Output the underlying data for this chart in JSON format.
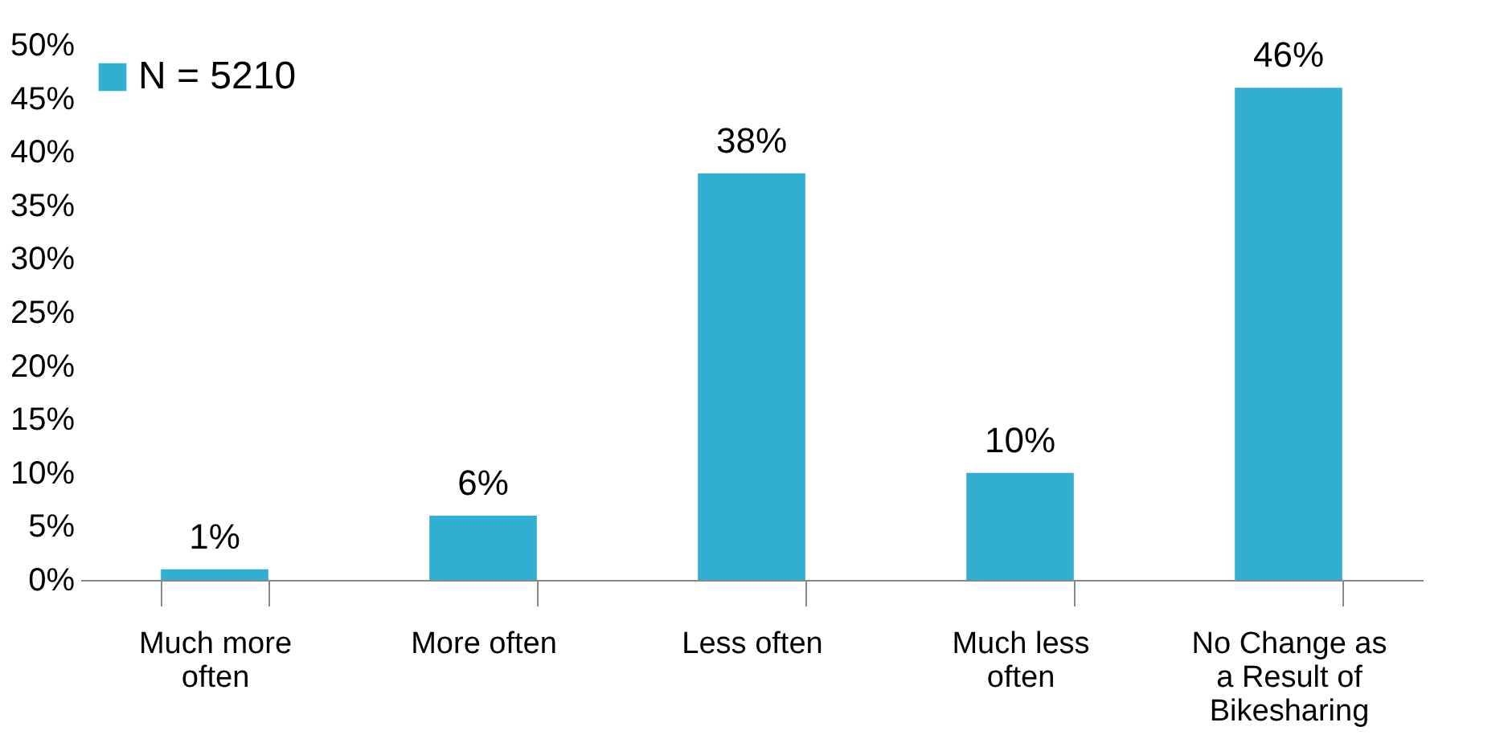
{
  "chart_data": {
    "type": "bar",
    "categories": [
      "Much more often",
      "More often",
      "Less often",
      "Much less often",
      "No Change as a Result of Bikesharing"
    ],
    "series": [
      {
        "name": "N = 5210",
        "color": "#31aed0",
        "values": [
          1,
          6,
          38,
          10,
          46
        ],
        "value_labels": [
          "1%",
          "6%",
          "38%",
          "10%",
          "46%"
        ]
      }
    ],
    "ylim": [
      0,
      50
    ],
    "yticks": [
      {
        "value": 0,
        "label": "0%"
      },
      {
        "value": 5,
        "label": "5%"
      },
      {
        "value": 10,
        "label": "10%"
      },
      {
        "value": 15,
        "label": "15%"
      },
      {
        "value": 20,
        "label": "20%"
      },
      {
        "value": 25,
        "label": "25%"
      },
      {
        "value": 30,
        "label": "30%"
      },
      {
        "value": 35,
        "label": "35%"
      },
      {
        "value": 40,
        "label": "40%"
      },
      {
        "value": 45,
        "label": "45%"
      },
      {
        "value": 50,
        "label": "50%"
      }
    ],
    "legend": "top left",
    "grid": false
  }
}
